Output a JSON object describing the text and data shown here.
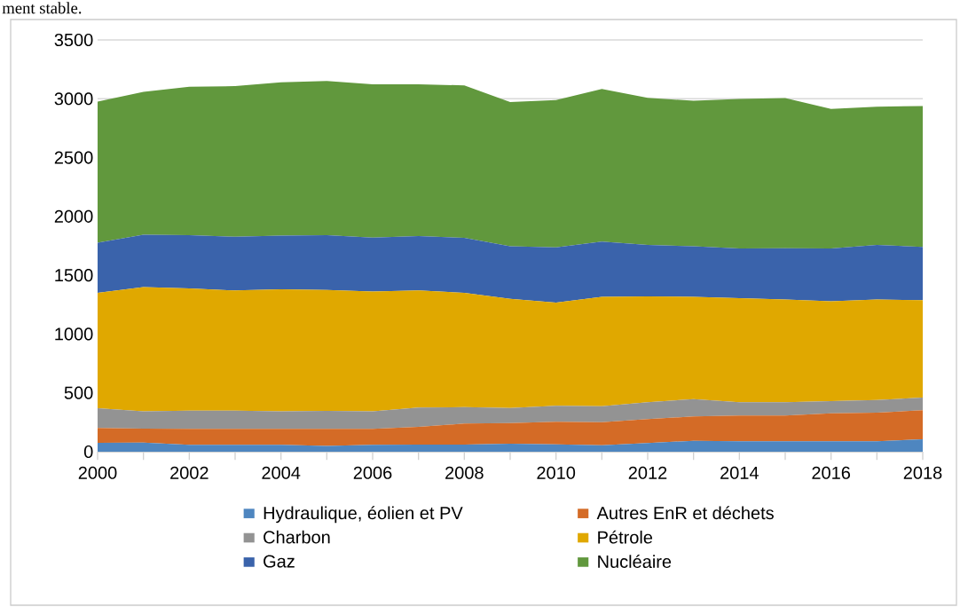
{
  "chart_data": {
    "type": "area",
    "stacked": true,
    "x": [
      2000,
      2001,
      2002,
      2003,
      2004,
      2005,
      2006,
      2007,
      2008,
      2009,
      2010,
      2011,
      2012,
      2013,
      2014,
      2015,
      2016,
      2017,
      2018
    ],
    "series": [
      {
        "name": "Hydraulique, éolien et PV",
        "color": "#4e86c0",
        "values": [
          75,
          78,
          58,
          59,
          59,
          48,
          58,
          60,
          60,
          68,
          63,
          55,
          73,
          93,
          88,
          88,
          88,
          88,
          105
        ]
      },
      {
        "name": "Autres EnR et déchets",
        "color": "#d46b26",
        "values": [
          126,
          118,
          136,
          135,
          135,
          146,
          136,
          151,
          179,
          176,
          191,
          196,
          204,
          206,
          219,
          219,
          239,
          244,
          247
        ]
      },
      {
        "name": "Charbon",
        "color": "#939393",
        "values": [
          168,
          148,
          155,
          155,
          150,
          152,
          150,
          164,
          140,
          128,
          136,
          136,
          143,
          148,
          113,
          113,
          103,
          108,
          108
        ]
      },
      {
        "name": "Pétrole",
        "color": "#e0a800",
        "values": [
          981,
          1056,
          1038,
          1021,
          1036,
          1029,
          1018,
          995,
          971,
          927,
          877,
          930,
          900,
          870,
          884,
          874,
          849,
          854,
          827
        ]
      },
      {
        "name": "Gaz",
        "color": "#3a63ab",
        "values": [
          427,
          445,
          453,
          457,
          457,
          465,
          458,
          462,
          467,
          448,
          469,
          468,
          437,
          430,
          423,
          436,
          448,
          463,
          453
        ]
      },
      {
        "name": "Nucléaire",
        "color": "#61983d",
        "values": [
          1198,
          1214,
          1262,
          1280,
          1302,
          1312,
          1302,
          1290,
          1297,
          1224,
          1252,
          1299,
          1251,
          1236,
          1272,
          1276,
          1187,
          1176,
          1198
        ]
      }
    ],
    "xlim": [
      2000,
      2018
    ],
    "xticks": [
      2000,
      {
        "value": 2001,
        "label": null
      },
      2002,
      {
        "value": 2003,
        "label": null
      },
      2004,
      {
        "value": 2005,
        "label": null
      },
      2006,
      {
        "value": 2007,
        "label": null
      },
      2008,
      {
        "value": 2009,
        "label": null
      },
      2010,
      {
        "value": 2011,
        "label": null
      },
      2012,
      {
        "value": 2013,
        "label": null
      },
      2014,
      {
        "value": 2015,
        "label": null
      },
      2016,
      {
        "value": 2017,
        "label": null
      },
      2018
    ],
    "ylim": [
      0,
      3500
    ],
    "yticks": [
      0,
      500,
      1000,
      1500,
      2000,
      2500,
      3000,
      3500
    ],
    "grid": "y",
    "legend": "bottom",
    "annotations": [
      "ment stable."
    ]
  }
}
